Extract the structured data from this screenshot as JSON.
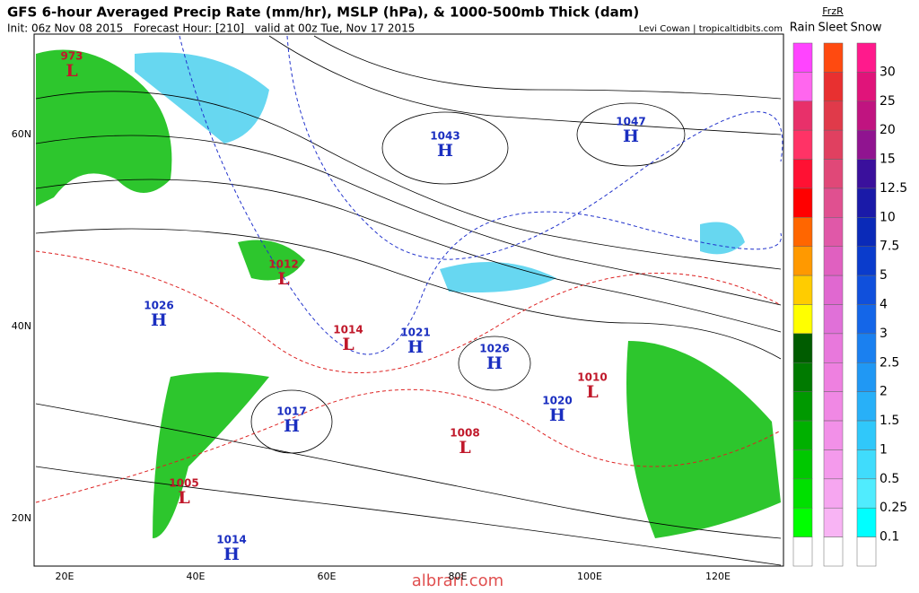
{
  "header": {
    "title": "GFS 6-hour Averaged Precip Rate (mm/hr), MSLP (hPa), & 1000-500mb Thick (dam)",
    "subtitle": "Init: 06z Nov 08 2015   Forecast Hour: [210]   valid at 00z Tue, Nov 17 2015",
    "credit": "Levi Cowan | tropicaltidbits.com"
  },
  "axes": {
    "lat_labels": [
      "60N",
      "40N",
      "20N"
    ],
    "lon_labels": [
      "20E",
      "40E",
      "60E",
      "80E",
      "100E",
      "120E"
    ]
  },
  "centers": [
    {
      "kind": "L",
      "value": "973"
    },
    {
      "kind": "H",
      "value": "1043"
    },
    {
      "kind": "H",
      "value": "1047"
    },
    {
      "kind": "L",
      "value": "1012"
    },
    {
      "kind": "H",
      "value": "1026"
    },
    {
      "kind": "L",
      "value": "1014"
    },
    {
      "kind": "H",
      "value": "1021"
    },
    {
      "kind": "H",
      "value": "1026"
    },
    {
      "kind": "L",
      "value": "1010"
    },
    {
      "kind": "H",
      "value": "1020"
    },
    {
      "kind": "H",
      "value": "1017"
    },
    {
      "kind": "L",
      "value": "1008"
    },
    {
      "kind": "L",
      "value": "1005"
    },
    {
      "kind": "H",
      "value": "1014"
    }
  ],
  "legend": {
    "columns": [
      "Rain",
      "Sleet",
      "Snow"
    ],
    "sleet_header": "FrzR",
    "labels": [
      "30",
      "25",
      "20",
      "15",
      "12.5",
      "10",
      "7.5",
      "5",
      "4",
      "3",
      "2.5",
      "2",
      "1.5",
      "1",
      "0.5",
      "0.25",
      "0.1"
    ]
  },
  "watermark": "albrari.com"
}
